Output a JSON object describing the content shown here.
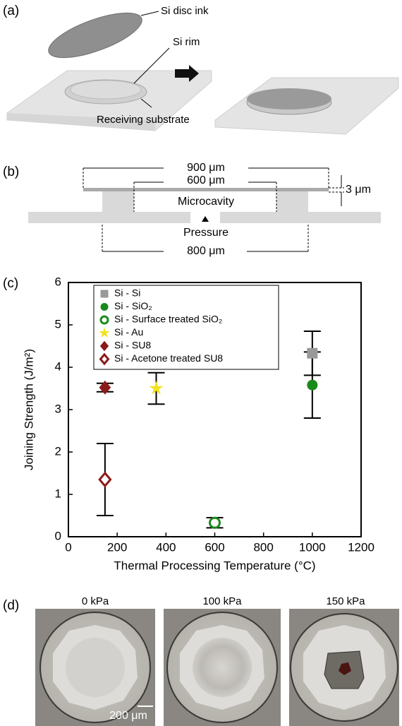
{
  "panel_a": {
    "label": "(a)",
    "disc": "Si disc ink",
    "rim": "Si rim",
    "substrate": "Receiving substrate"
  },
  "panel_b": {
    "label": "(b)",
    "width_outer": "900 μm",
    "width_inner": "600 μm",
    "thickness": "3 μm",
    "cavity": "Microcavity",
    "pressure": "Pressure",
    "width_base": "800 μm"
  },
  "chart_data": {
    "type": "scatter",
    "label": "(c)",
    "x_label": "Thermal Processing Temperature (°C)",
    "y_label": "Joining Strength (J/m²)",
    "xlim": [
      0,
      1200
    ],
    "xticks": [
      0,
      200,
      400,
      600,
      800,
      1000,
      1200
    ],
    "ylim": [
      0,
      6
    ],
    "yticks": [
      0,
      1,
      2,
      3,
      4,
      5,
      6
    ],
    "legend": "upper left",
    "series": [
      {
        "name": "Si - Si",
        "color": "#999999",
        "marker": "square",
        "filled": true,
        "x": [
          1000
        ],
        "values": [
          4.33
        ],
        "errors": [
          0.52
        ]
      },
      {
        "name": "Si - SiO₂",
        "color": "#1a8a1a",
        "marker": "circle",
        "filled": true,
        "x": [
          1000
        ],
        "values": [
          3.58
        ],
        "errors": [
          0.78
        ]
      },
      {
        "name": "Si - Surface treated SiO₂",
        "color": "#1a8a1a",
        "marker": "circle",
        "filled": false,
        "x": [
          600
        ],
        "values": [
          0.33
        ],
        "errors": [
          0.12
        ]
      },
      {
        "name": "Si - Au",
        "color": "#f2e21a",
        "marker": "star",
        "filled": true,
        "x": [
          360
        ],
        "values": [
          3.5
        ],
        "errors": [
          0.37
        ]
      },
      {
        "name": "Si - SU8",
        "color": "#8b1a1a",
        "marker": "diamond",
        "filled": true,
        "x": [
          150
        ],
        "values": [
          3.52
        ],
        "errors": [
          0.1
        ]
      },
      {
        "name": "Si - Acetone treated SU8",
        "color": "#8b1a1a",
        "marker": "diamond",
        "filled": false,
        "x": [
          150
        ],
        "values": [
          1.35
        ],
        "errors": [
          0.85
        ]
      }
    ]
  },
  "panel_d": {
    "label": "(d)",
    "images": [
      "0 kPa",
      "100 kPa",
      "150 kPa"
    ],
    "scale_bar": "200 μm"
  }
}
